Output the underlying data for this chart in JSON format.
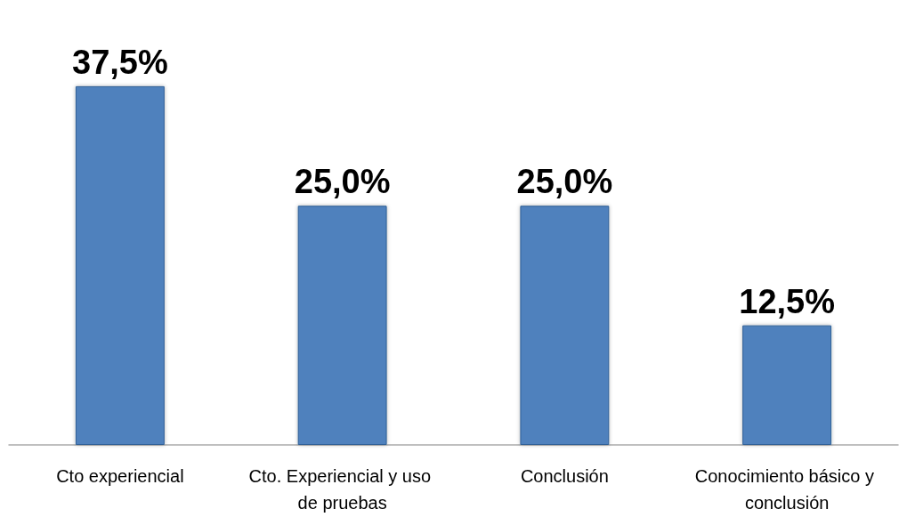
{
  "chart_data": {
    "type": "bar",
    "categories": [
      "Cto experiencial",
      "Cto. Experiencial y uso de pruebas",
      "Conclusión",
      "Conocimiento básico y conclusión"
    ],
    "values": [
      37.5,
      25.0,
      25.0,
      12.5
    ],
    "value_labels": [
      "37,5%",
      "25,0%",
      "25,0%",
      "12,5%"
    ],
    "color": "#4f81bd",
    "tick_labels": "x"
  }
}
